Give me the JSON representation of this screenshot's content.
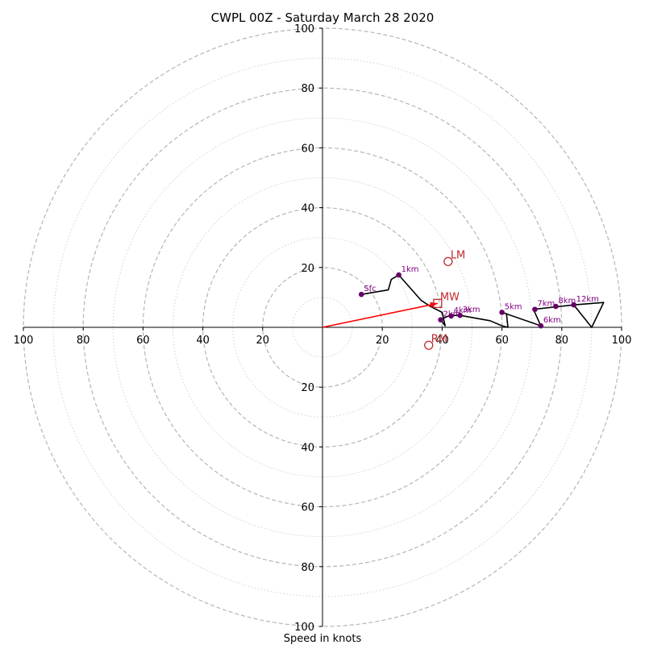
{
  "chart_data": {
    "type": "hodograph",
    "title": "CWPL 00Z - Saturday March 28 2020",
    "xlabel": "Speed in knots",
    "range": [
      -100,
      100
    ],
    "ring_labels": [
      "20",
      "40",
      "60",
      "80",
      "100"
    ],
    "x_tick_labels": [
      {
        "value": -100,
        "label": "100"
      },
      {
        "value": -80,
        "label": "80"
      },
      {
        "value": -60,
        "label": "60"
      },
      {
        "value": -40,
        "label": "40"
      },
      {
        "value": -20,
        "label": "20"
      },
      {
        "value": 20,
        "label": "20"
      },
      {
        "value": 40,
        "label": "40"
      },
      {
        "value": 60,
        "label": "60"
      },
      {
        "value": 80,
        "label": "80"
      },
      {
        "value": 100,
        "label": "100"
      }
    ],
    "y_tick_labels": [
      {
        "value": 100,
        "label": "100"
      },
      {
        "value": 80,
        "label": "80"
      },
      {
        "value": 60,
        "label": "60"
      },
      {
        "value": 40,
        "label": "40"
      },
      {
        "value": 20,
        "label": "20"
      },
      {
        "value": -20,
        "label": "20"
      },
      {
        "value": -40,
        "label": "40"
      },
      {
        "value": -60,
        "label": "60"
      },
      {
        "value": -80,
        "label": "80"
      },
      {
        "value": -100,
        "label": "100"
      }
    ],
    "hodograph_trace": [
      [
        13,
        11
      ],
      [
        22,
        12.5
      ],
      [
        23,
        16
      ],
      [
        25.5,
        17.5
      ],
      [
        33,
        9
      ],
      [
        36,
        7
      ],
      [
        40,
        5
      ],
      [
        41,
        0.5
      ],
      [
        39.5,
        2.5
      ],
      [
        42.5,
        4
      ],
      [
        46,
        4
      ],
      [
        56,
        2.2
      ],
      [
        60,
        0.5
      ],
      [
        62,
        0
      ],
      [
        61.5,
        4.5
      ],
      [
        60,
        5
      ],
      [
        73,
        0.5
      ],
      [
        70.5,
        6
      ],
      [
        84,
        7.5
      ],
      [
        94,
        8.3
      ],
      [
        90,
        0
      ],
      [
        84,
        7.5
      ]
    ],
    "height_markers": [
      {
        "label": "Sfc",
        "u": 13,
        "v": 11
      },
      {
        "label": "1km",
        "u": 25.5,
        "v": 17.5
      },
      {
        "label": "2km",
        "u": 39.5,
        "v": 2.5
      },
      {
        "label": "3km",
        "u": 46,
        "v": 4
      },
      {
        "label": "4km",
        "u": 43,
        "v": 3.8
      },
      {
        "label": "5km",
        "u": 60,
        "v": 5
      },
      {
        "label": "6km",
        "u": 73,
        "v": 0.5
      },
      {
        "label": "7km",
        "u": 71,
        "v": 6
      },
      {
        "label": "8km",
        "u": 78,
        "v": 7
      },
      {
        "label": "12km",
        "u": 84,
        "v": 7.5
      }
    ],
    "storm_motions": [
      {
        "label": "LM",
        "u": 42,
        "v": 22,
        "marker": "circle"
      },
      {
        "label": "MW",
        "u": 38.5,
        "v": 8,
        "marker": "square"
      },
      {
        "label": "RM",
        "u": 35.5,
        "v": -6,
        "marker": "circle"
      }
    ],
    "shear_vector": {
      "u": 38.5,
      "v": 8
    },
    "colors": {
      "trace": "#000000",
      "markers": "#660066",
      "marker_labels": "#800080",
      "storm_motion": "#c0272d",
      "shear_vector": "#ff0000",
      "rings": "#b0b0b0"
    }
  }
}
